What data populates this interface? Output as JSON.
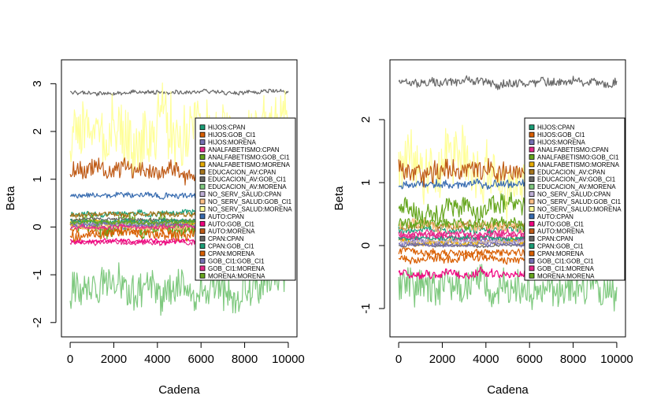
{
  "chart_data": [
    {
      "type": "line",
      "title": "",
      "xlabel": "Cadena",
      "ylabel": "Beta",
      "xlim": [
        0,
        10000
      ],
      "ylim": [
        -2.3,
        3.5
      ],
      "xticks": [
        0,
        2000,
        4000,
        6000,
        8000,
        10000
      ],
      "yticks": [
        -2,
        -1,
        0,
        1,
        2,
        3
      ],
      "legend": "right-middle",
      "grid": false,
      "series": [
        {
          "name": "HIJOS:CPAN",
          "color": "#1b9e77",
          "level": 0.28,
          "amp": 0.05
        },
        {
          "name": "HIJOS:GOB_CI1",
          "color": "#d95f02",
          "level": -0.05,
          "amp": 0.08
        },
        {
          "name": "HIJOS:MORENA",
          "color": "#7570b3",
          "level": 0.02,
          "amp": 0.04
        },
        {
          "name": "ANALFABETISMO:CPAN",
          "color": "#e7298a",
          "level": -0.32,
          "amp": 0.05
        },
        {
          "name": "ANALFABETISMO:GOB_CI1",
          "color": "#66a61e",
          "level": 0.05,
          "amp": 0.18
        },
        {
          "name": "ANALFABETISMO:MORENA",
          "color": "#e6ab02",
          "level": 0.1,
          "amp": 0.05
        },
        {
          "name": "EDUCACION_AV:CPAN",
          "color": "#a6761d",
          "level": 0.25,
          "amp": 0.05
        },
        {
          "name": "EDUCACION_AV:GOB_CI1",
          "color": "#666666",
          "level": 2.82,
          "amp": 0.04
        },
        {
          "name": "EDUCACION_AV:MORENA",
          "color": "#7fc97f",
          "level": -1.25,
          "amp": 0.35
        },
        {
          "name": "NO_SERV_SALUD:CPAN",
          "color": "#beaed4",
          "level": 0.08,
          "amp": 0.04
        },
        {
          "name": "NO_SERV_SALUD:GOB_CI1",
          "color": "#fdc086",
          "level": 0.0,
          "amp": 0.05
        },
        {
          "name": "NO_SERV_SALUD:MORENA",
          "color": "#ffff99",
          "level": 2.0,
          "amp": 0.6
        },
        {
          "name": "AUTO:CPAN",
          "color": "#386cb0",
          "level": 0.65,
          "amp": 0.05
        },
        {
          "name": "AUTO:GOB_CI1",
          "color": "#f0027f",
          "level": -0.3,
          "amp": 0.04
        },
        {
          "name": "AUTO:MORENA",
          "color": "#bf5b17",
          "level": 1.2,
          "amp": 0.18
        },
        {
          "name": "CPAN:CPAN",
          "color": "#666666",
          "level": 0.15,
          "amp": 0.03
        },
        {
          "name": "CPAN:GOB_CI1",
          "color": "#1b9e77",
          "level": 0.12,
          "amp": 0.04
        },
        {
          "name": "CPAN:MORENA",
          "color": "#d95f02",
          "level": -0.15,
          "amp": 0.1
        },
        {
          "name": "GOB_CI1:GOB_CI1",
          "color": "#7570b3",
          "level": 0.05,
          "amp": 0.04
        },
        {
          "name": "GOB_CI1:MORENA",
          "color": "#e7298a",
          "level": 0.0,
          "amp": 0.04
        },
        {
          "name": "MORENA:MORENA",
          "color": "#66a61e",
          "level": 0.1,
          "amp": 0.04
        }
      ]
    },
    {
      "type": "line",
      "title": "",
      "xlabel": "Cadena",
      "ylabel": "Beta",
      "xlim": [
        0,
        10000
      ],
      "ylim": [
        -1.45,
        2.95
      ],
      "xticks": [
        0,
        2000,
        4000,
        6000,
        8000,
        10000
      ],
      "yticks": [
        -1,
        0,
        1,
        2
      ],
      "legend": "right-middle",
      "grid": false,
      "series": [
        {
          "name": "HIJOS:CPAN",
          "color": "#1b9e77",
          "level": 0.25,
          "amp": 0.05
        },
        {
          "name": "HIJOS:GOB_CI1",
          "color": "#d95f02",
          "level": -0.2,
          "amp": 0.06
        },
        {
          "name": "HIJOS:MORENA",
          "color": "#7570b3",
          "level": 0.08,
          "amp": 0.05
        },
        {
          "name": "ANALFABETISMO:CPAN",
          "color": "#e7298a",
          "level": 0.15,
          "amp": 0.06
        },
        {
          "name": "ANALFABETISMO:GOB_CI1",
          "color": "#66a61e",
          "level": 0.6,
          "amp": 0.15
        },
        {
          "name": "ANALFABETISMO:MORENA",
          "color": "#e6ab02",
          "level": 0.05,
          "amp": 0.05
        },
        {
          "name": "EDUCACION_AV:CPAN",
          "color": "#a6761d",
          "level": 0.3,
          "amp": 0.05
        },
        {
          "name": "EDUCACION_AV:GOB_CI1",
          "color": "#666666",
          "level": 2.6,
          "amp": 0.06
        },
        {
          "name": "EDUCACION_AV:MORENA",
          "color": "#7fc97f",
          "level": -0.7,
          "amp": 0.25
        },
        {
          "name": "NO_SERV_SALUD:CPAN",
          "color": "#beaed4",
          "level": 0.05,
          "amp": 0.03
        },
        {
          "name": "NO_SERV_SALUD:GOB_CI1",
          "color": "#fdc086",
          "level": 0.3,
          "amp": 0.08
        },
        {
          "name": "NO_SERV_SALUD:MORENA",
          "color": "#ffff99",
          "level": 1.1,
          "amp": 0.4
        },
        {
          "name": "AUTO:CPAN",
          "color": "#386cb0",
          "level": 0.95,
          "amp": 0.06
        },
        {
          "name": "AUTO:GOB_CI1",
          "color": "#f0027f",
          "level": -0.45,
          "amp": 0.06
        },
        {
          "name": "AUTO:MORENA",
          "color": "#bf5b17",
          "level": 1.2,
          "amp": 0.15
        },
        {
          "name": "CPAN:CPAN",
          "color": "#666666",
          "level": 0.0,
          "amp": 0.02
        },
        {
          "name": "CPAN:GOB_CI1",
          "color": "#1b9e77",
          "level": 0.12,
          "amp": 0.03
        },
        {
          "name": "CPAN:MORENA",
          "color": "#d95f02",
          "level": -0.1,
          "amp": 0.05
        },
        {
          "name": "GOB_CI1:GOB_CI1",
          "color": "#7570b3",
          "level": 0.02,
          "amp": 0.03
        },
        {
          "name": "GOB_CI1:MORENA",
          "color": "#e7298a",
          "level": 0.18,
          "amp": 0.05
        },
        {
          "name": "MORENA:MORENA",
          "color": "#66a61e",
          "level": 0.35,
          "amp": 0.08
        }
      ]
    }
  ]
}
